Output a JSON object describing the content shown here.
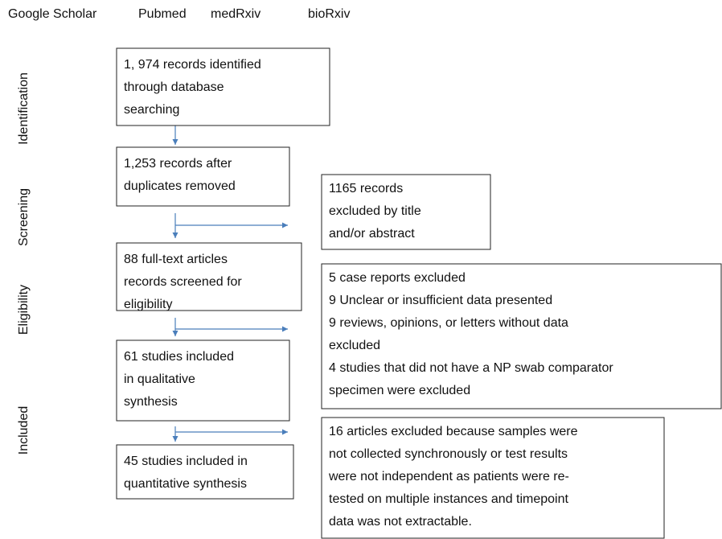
{
  "header": {
    "sources": [
      "Google Scholar",
      "Pubmed",
      "medRxiv",
      "bioRxiv"
    ]
  },
  "stages": [
    "Identification",
    "Screening",
    "Eligibility",
    "Included"
  ],
  "main_boxes": [
    {
      "lines": [
        "1, 974 records identified",
        "through database",
        "searching"
      ]
    },
    {
      "lines": [
        "1,253 records after",
        "duplicates removed"
      ]
    },
    {
      "lines": [
        "88 full-text articles",
        "records screened for",
        "eligibility"
      ]
    },
    {
      "lines": [
        "61 studies included",
        "in qualitative",
        "synthesis"
      ]
    },
    {
      "lines": [
        "45 studies included in",
        "quantitative synthesis"
      ]
    }
  ],
  "excluded_boxes": [
    {
      "lines": [
        "1165 records",
        "excluded by title",
        "and/or abstract"
      ]
    },
    {
      "lines": [
        "5 case reports excluded",
        "9 Unclear or insufficient data presented",
        "9 reviews, opinions, or letters without data",
        "excluded",
        "4 studies that did not have a NP swab comparator",
        "specimen were excluded"
      ]
    },
    {
      "lines": [
        "16 articles excluded because samples were",
        "not  collected synchronously or test results",
        "were not independent as patients were re-",
        "tested on multiple instances and timepoint",
        "data was not extractable."
      ]
    }
  ]
}
